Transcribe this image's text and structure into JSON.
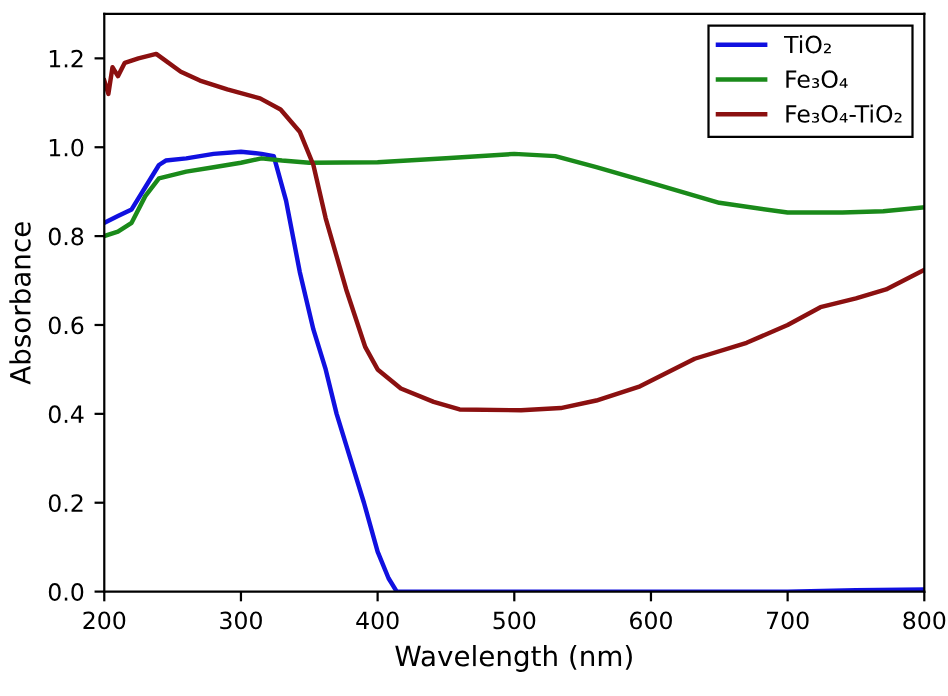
{
  "chart_data": {
    "type": "line",
    "xlabel": "Wavelength (nm)",
    "ylabel": "Absorbance",
    "xlim": [
      200,
      800
    ],
    "ylim": [
      0,
      1.3
    ],
    "xticks": [
      200,
      300,
      400,
      500,
      600,
      700,
      800
    ],
    "yticks": [
      {
        "value": 0,
        "label": "0.0"
      },
      {
        "value": 0.2,
        "label": "0.2"
      },
      {
        "value": 0.4,
        "label": "0.4"
      },
      {
        "value": 0.6,
        "label": "0.6"
      },
      {
        "value": 0.8,
        "label": "0.8"
      },
      {
        "value": 1.0,
        "label": "1.0"
      },
      {
        "value": 1.2,
        "label": "1.2"
      }
    ],
    "grid": false,
    "legend": "top right",
    "marker": "none",
    "line_style": "solid",
    "series": [
      {
        "name": "TiO₂",
        "color": "#1010e0",
        "x": [
          200,
          210,
          220,
          230,
          240,
          245,
          260,
          280,
          300,
          315,
          324,
          333,
          343,
          353,
          362,
          370,
          380,
          390,
          400,
          408,
          414,
          500,
          700,
          750,
          800
        ],
        "values": [
          0.83,
          0.845,
          0.86,
          0.91,
          0.96,
          0.97,
          0.975,
          0.985,
          0.99,
          0.985,
          0.98,
          0.88,
          0.72,
          0.59,
          0.5,
          0.4,
          0.3,
          0.2,
          0.09,
          0.03,
          0,
          0,
          0,
          0.003,
          0.005
        ]
      },
      {
        "name": "Fe₃O₄",
        "color": "#1a8a1a",
        "x": [
          200,
          210,
          220,
          230,
          240,
          260,
          280,
          300,
          315,
          330,
          350,
          400,
          450,
          500,
          530,
          560,
          600,
          650,
          700,
          740,
          770,
          800
        ],
        "values": [
          0.8,
          0.81,
          0.83,
          0.89,
          0.93,
          0.945,
          0.955,
          0.965,
          0.975,
          0.97,
          0.965,
          0.966,
          0.975,
          0.985,
          0.98,
          0.955,
          0.92,
          0.875,
          0.853,
          0.853,
          0.856,
          0.865
        ]
      },
      {
        "name": "Fe₃O₄-TiO₂",
        "color": "#8b1010",
        "x": [
          200,
          203,
          206,
          210,
          215,
          225,
          238,
          256,
          270,
          290,
          314,
          329,
          343,
          353,
          362,
          377,
          391,
          400,
          417,
          441,
          460,
          505,
          534,
          560,
          592,
          632,
          670,
          700,
          724,
          750,
          772,
          800
        ],
        "values": [
          1.15,
          1.12,
          1.18,
          1.16,
          1.19,
          1.2,
          1.21,
          1.17,
          1.15,
          1.13,
          1.11,
          1.085,
          1.035,
          0.96,
          0.84,
          0.68,
          0.55,
          0.5,
          0.457,
          0.427,
          0.41,
          0.408,
          0.413,
          0.43,
          0.462,
          0.524,
          0.56,
          0.6,
          0.64,
          0.66,
          0.68,
          0.724
        ]
      }
    ]
  }
}
